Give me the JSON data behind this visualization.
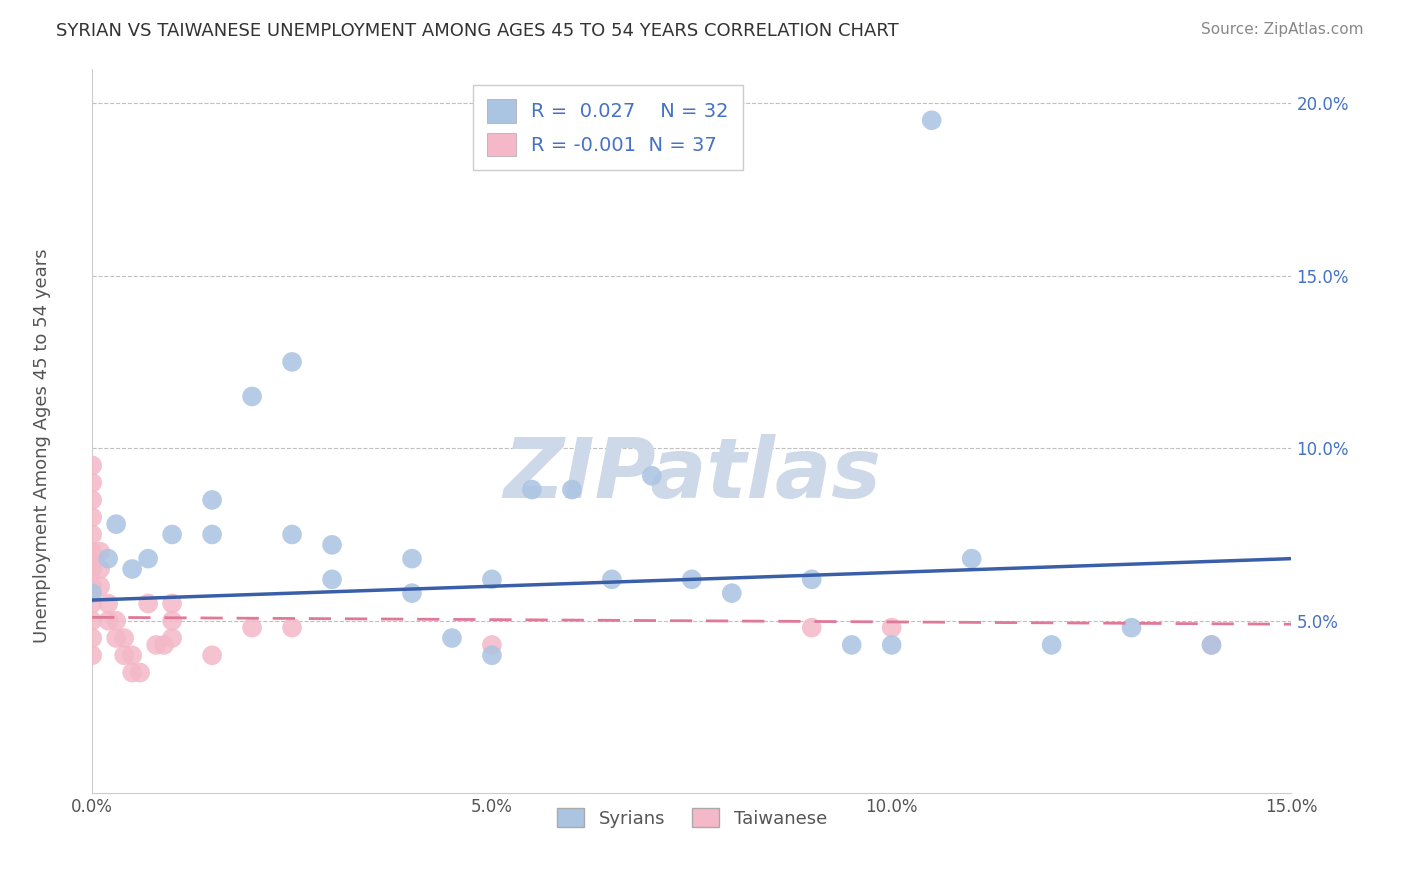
{
  "title": "SYRIAN VS TAIWANESE UNEMPLOYMENT AMONG AGES 45 TO 54 YEARS CORRELATION CHART",
  "source": "Source: ZipAtlas.com",
  "ylabel": "Unemployment Among Ages 45 to 54 years",
  "xlim": [
    0.0,
    0.15
  ],
  "ylim": [
    0.0,
    0.21
  ],
  "xticks": [
    0.0,
    0.05,
    0.1,
    0.15
  ],
  "xticklabels": [
    "0.0%",
    "5.0%",
    "10.0%",
    "15.0%"
  ],
  "yticks": [
    0.05,
    0.1,
    0.15,
    0.2
  ],
  "yticklabels": [
    "5.0%",
    "10.0%",
    "15.0%",
    "20.0%"
  ],
  "syrians_R": 0.027,
  "syrians_N": 32,
  "taiwanese_R": -0.001,
  "taiwanese_N": 37,
  "syrians_color": "#aac4e2",
  "taiwanese_color": "#f4b8c8",
  "syrians_line_color": "#3a5fa8",
  "taiwanese_line_color": "#e07898",
  "watermark": "ZIPatlas",
  "watermark_color": "#cdd8e8",
  "syrians_x": [
    0.005,
    0.01,
    0.015,
    0.015,
    0.02,
    0.025,
    0.025,
    0.03,
    0.03,
    0.04,
    0.04,
    0.045,
    0.05,
    0.05,
    0.055,
    0.06,
    0.065,
    0.07,
    0.075,
    0.08,
    0.09,
    0.095,
    0.1,
    0.105,
    0.11,
    0.12,
    0.13,
    0.14,
    0.0,
    0.002,
    0.003,
    0.007
  ],
  "syrians_y": [
    0.065,
    0.075,
    0.075,
    0.085,
    0.115,
    0.125,
    0.075,
    0.072,
    0.062,
    0.068,
    0.058,
    0.045,
    0.04,
    0.062,
    0.088,
    0.088,
    0.062,
    0.092,
    0.062,
    0.058,
    0.062,
    0.043,
    0.043,
    0.195,
    0.068,
    0.043,
    0.048,
    0.043,
    0.058,
    0.068,
    0.078,
    0.068
  ],
  "taiwanese_x": [
    0.0,
    0.0,
    0.0,
    0.0,
    0.0,
    0.0,
    0.0,
    0.0,
    0.0,
    0.0,
    0.0,
    0.0,
    0.001,
    0.001,
    0.001,
    0.002,
    0.002,
    0.003,
    0.003,
    0.004,
    0.004,
    0.005,
    0.005,
    0.006,
    0.007,
    0.008,
    0.009,
    0.01,
    0.01,
    0.01,
    0.015,
    0.02,
    0.025,
    0.05,
    0.09,
    0.1,
    0.14
  ],
  "taiwanese_y": [
    0.095,
    0.09,
    0.085,
    0.08,
    0.075,
    0.07,
    0.065,
    0.06,
    0.055,
    0.05,
    0.045,
    0.04,
    0.07,
    0.065,
    0.06,
    0.055,
    0.05,
    0.05,
    0.045,
    0.045,
    0.04,
    0.04,
    0.035,
    0.035,
    0.055,
    0.043,
    0.043,
    0.055,
    0.05,
    0.045,
    0.04,
    0.048,
    0.048,
    0.043,
    0.048,
    0.048,
    0.043
  ],
  "syrian_trend_x0": 0.0,
  "syrian_trend_y0": 0.056,
  "syrian_trend_x1": 0.15,
  "syrian_trend_y1": 0.068,
  "taiwanese_trend_x0": 0.0,
  "taiwanese_trend_y0": 0.051,
  "taiwanese_trend_x1": 0.15,
  "taiwanese_trend_y1": 0.049
}
